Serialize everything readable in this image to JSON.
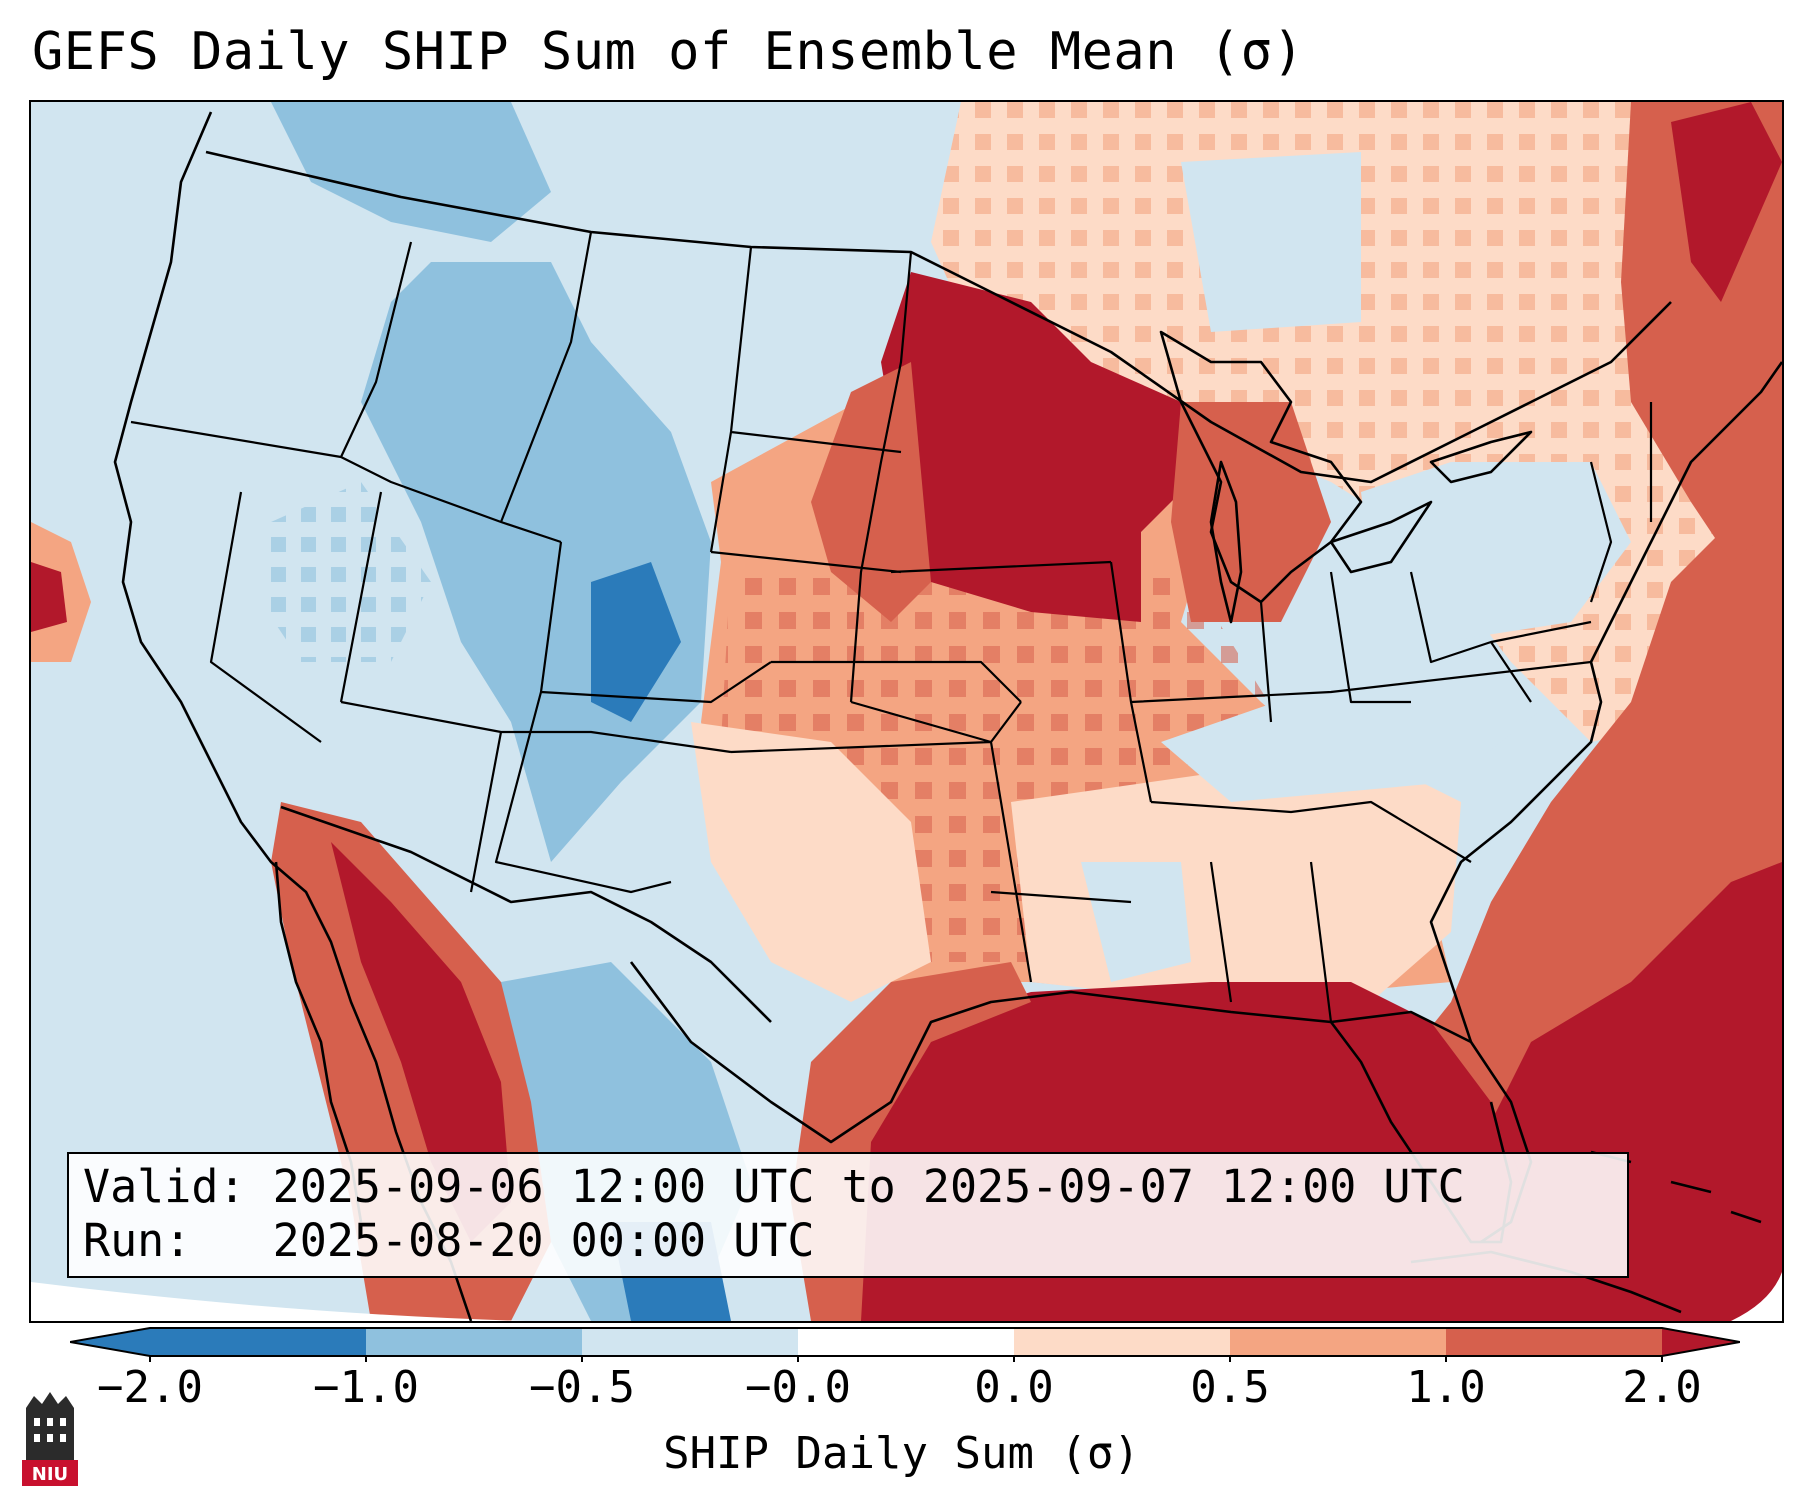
{
  "title": "GEFS Daily SHIP Sum of Ensemble Mean (σ)",
  "info": {
    "valid_line": "Valid: 2025-09-06 12:00 UTC to 2025-09-07 12:00 UTC",
    "run_line": "Run:   2025-08-20 00:00 UTC"
  },
  "colorbar": {
    "label": "SHIP Daily Sum (σ)",
    "ticks": [
      "−2.0",
      "−1.0",
      "−0.5",
      "−0.0",
      "0.0",
      "0.5",
      "1.0",
      "2.0"
    ],
    "colors": [
      "#2b7bba",
      "#8fc1de",
      "#d1e5f0",
      "#ffffff",
      "#fddbc7",
      "#f4a582",
      "#d6604d",
      "#b2182b"
    ],
    "extend": "both"
  },
  "map": {
    "region": "Contiguous United States",
    "field_summary": {
      "strong_positive_regions": [
        "Gulf of Mexico",
        "Western Atlantic",
        "Upper Midwest (Minnesota/Wisconsin)",
        "Gulf of California"
      ],
      "negative_regions": [
        "Pacific Northwest",
        "Intermountain West",
        "Colorado / Rockies",
        "Northern Mexico",
        "Mid-Atlantic"
      ]
    }
  },
  "logo": {
    "text": "NIU"
  }
}
